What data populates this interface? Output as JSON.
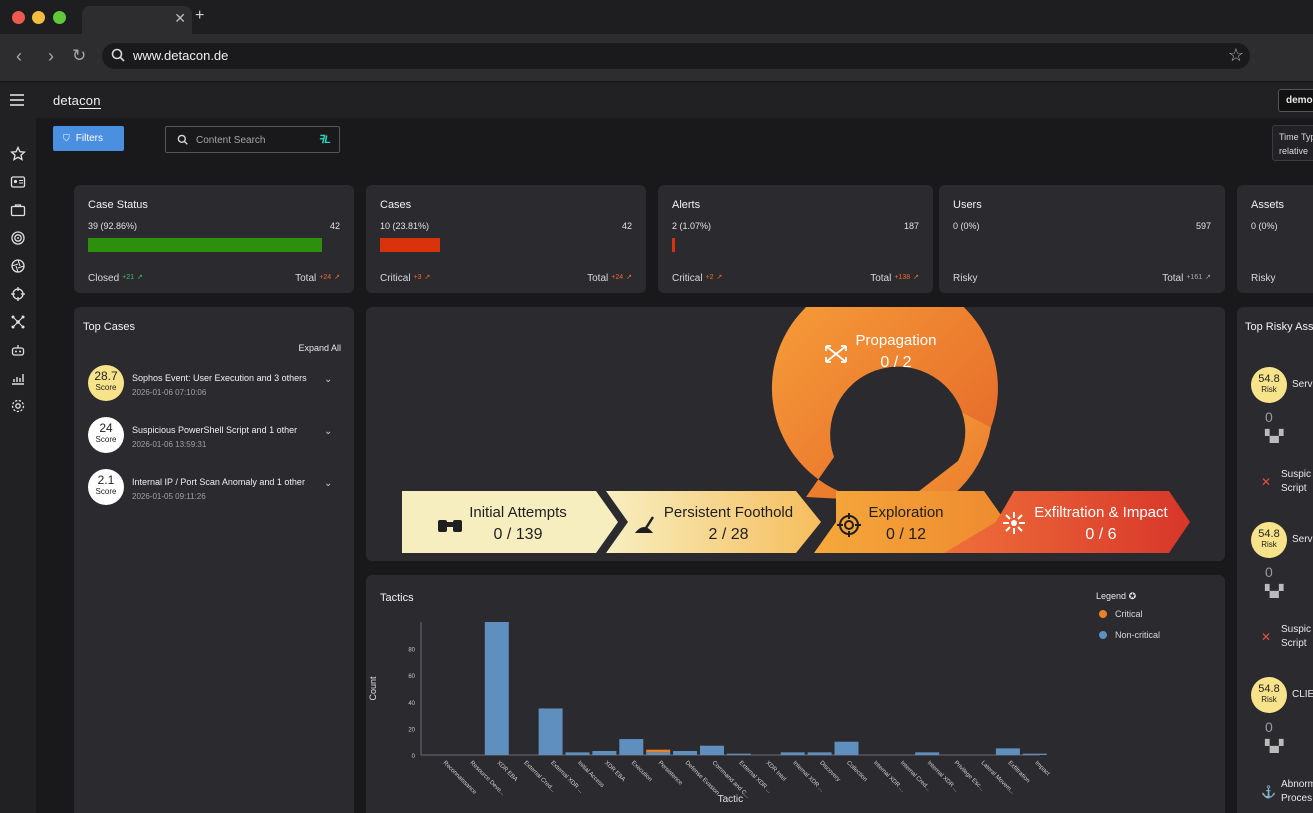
{
  "browser": {
    "url": "www.detacon.de"
  },
  "app": {
    "brand": "detacon",
    "brand_a": "deta",
    "brand_b": "con",
    "user_button": "demo"
  },
  "toolbar": {
    "filters": "Filters",
    "search_placeholder": "Content Search",
    "search_logo": "ꟻL",
    "time_type_label": "Time Typ",
    "time_type_value": "relative"
  },
  "stats": [
    {
      "title": "Case Status",
      "count": "39 (92.86%)",
      "total": "42",
      "foot_left": "Closed",
      "foot_left_delta": "+21",
      "foot_right": "Total",
      "foot_right_delta": "+24",
      "bar_fraction": 0.9286,
      "bar_color": "#2e8f0c"
    },
    {
      "title": "Cases",
      "count": "10 (23.81%)",
      "total": "42",
      "foot_left": "Critical",
      "foot_left_delta": "+3",
      "foot_right": "Total",
      "foot_right_delta": "+24",
      "bar_fraction": 0.2381,
      "bar_color": "#d9330c"
    },
    {
      "title": "Alerts",
      "count": "2 (1.07%)",
      "total": "187",
      "foot_left": "Critical",
      "foot_left_delta": "+2",
      "foot_right": "Total",
      "foot_right_delta": "+138",
      "bar_fraction": 0.0107,
      "bar_color": "#d9330c"
    },
    {
      "title": "Users",
      "count": "0 (0%)",
      "total": "597",
      "foot_left": "Risky",
      "foot_left_delta": "",
      "foot_right": "Total",
      "foot_right_delta": "+161",
      "bar_fraction": 0,
      "bar_color": "#d9330c"
    },
    {
      "title": "Assets",
      "count": "0 (0%)",
      "total": "",
      "foot_left": "Risky",
      "foot_left_delta": "",
      "foot_right": "",
      "foot_right_delta": "",
      "bar_fraction": 0,
      "bar_color": "#d9330c"
    }
  ],
  "top_cases": {
    "title": "Top Cases",
    "expand_all": "Expand All",
    "items": [
      {
        "score": "28.7",
        "score_label": "Score",
        "name": "Sophos Event: User Execution and 3 others",
        "date": "2026-01-06 07:10:06",
        "color": "#f7e38a"
      },
      {
        "score": "24",
        "score_label": "Score",
        "name": "Suspicious PowerShell Script and 1 other",
        "date": "2026-01-06 13:59:31",
        "color": "#ffffff"
      },
      {
        "score": "2.1",
        "score_label": "Score",
        "name": "Internal IP / Port Scan Anomaly and 1 other",
        "date": "2026-01-05 09:11:26",
        "color": "#ffffff"
      }
    ]
  },
  "flow": {
    "propagation": {
      "label": "Propagation",
      "value": "0 / 2"
    },
    "stages": [
      {
        "label": "Initial Attempts",
        "value": "0 / 139",
        "icon": "binoculars-icon"
      },
      {
        "label": "Persistent Foothold",
        "value": "2 / 28",
        "icon": "anchor-hand-icon"
      },
      {
        "label": "Exploration",
        "value": "0 / 12",
        "icon": "crosshair-icon"
      },
      {
        "label": "Exfiltration & Impact",
        "value": "0 / 6",
        "icon": "burst-icon"
      }
    ]
  },
  "tactics": {
    "title": "Tactics",
    "legend_title": "Legend",
    "legend": [
      {
        "name": "Critical",
        "color": "#e8822a"
      },
      {
        "name": "Non-critical",
        "color": "#5f8fbf"
      }
    ]
  },
  "chart_data": {
    "type": "bar",
    "stacked": true,
    "xlabel": "Tactic",
    "ylabel": "Count",
    "ylim": [
      0,
      100
    ],
    "yticks": [
      0,
      20,
      40,
      60,
      80
    ],
    "categories": [
      "Reconnaissance",
      "Resource Deve...",
      "XDR EBA",
      "External Cred...",
      "External XDR ...",
      "Initial Access",
      "XDR EBA",
      "Execution",
      "Persistence",
      "Defense Evasion",
      "Command and C...",
      "External XDR ...",
      "XDR Intel",
      "Internal XDR ...",
      "Discovery",
      "Collection",
      "Internal XDR ...",
      "Internal Cred...",
      "Internal XDR ...",
      "Privilege Esc...",
      "Lateral Movem...",
      "Exfiltration",
      "Impact"
    ],
    "series": [
      {
        "name": "Critical",
        "color": "#e8822a",
        "values": [
          0,
          0,
          0,
          0,
          0,
          0,
          0,
          0,
          2,
          0,
          0,
          0,
          0,
          0,
          0,
          0,
          0,
          0,
          0,
          0,
          0,
          0,
          0
        ]
      },
      {
        "name": "Non-critical",
        "color": "#5f8fbf",
        "values": [
          0,
          0,
          100,
          0,
          35,
          2,
          3,
          12,
          2,
          3,
          7,
          1,
          0,
          2,
          2,
          10,
          0,
          0,
          2,
          0,
          0,
          5,
          1
        ]
      }
    ]
  },
  "risky_assets": {
    "title": "Top Risky Ass",
    "items": [
      {
        "score": "54.8",
        "label": "Risk",
        "name": "Serv",
        "count": "0",
        "alert": "Suspic",
        "alert2": "Script",
        "alert_icon": "spread-icon"
      },
      {
        "score": "54.8",
        "label": "Risk",
        "name": "Serv",
        "count": "0",
        "alert": "Suspic",
        "alert2": "Script",
        "alert_icon": "spread-icon"
      },
      {
        "score": "54.8",
        "label": "Risk",
        "name": "CLIE",
        "count": "0",
        "alert": "Abnorm",
        "alert2": "Proces",
        "alert_icon": "anchor-icon"
      }
    ]
  }
}
